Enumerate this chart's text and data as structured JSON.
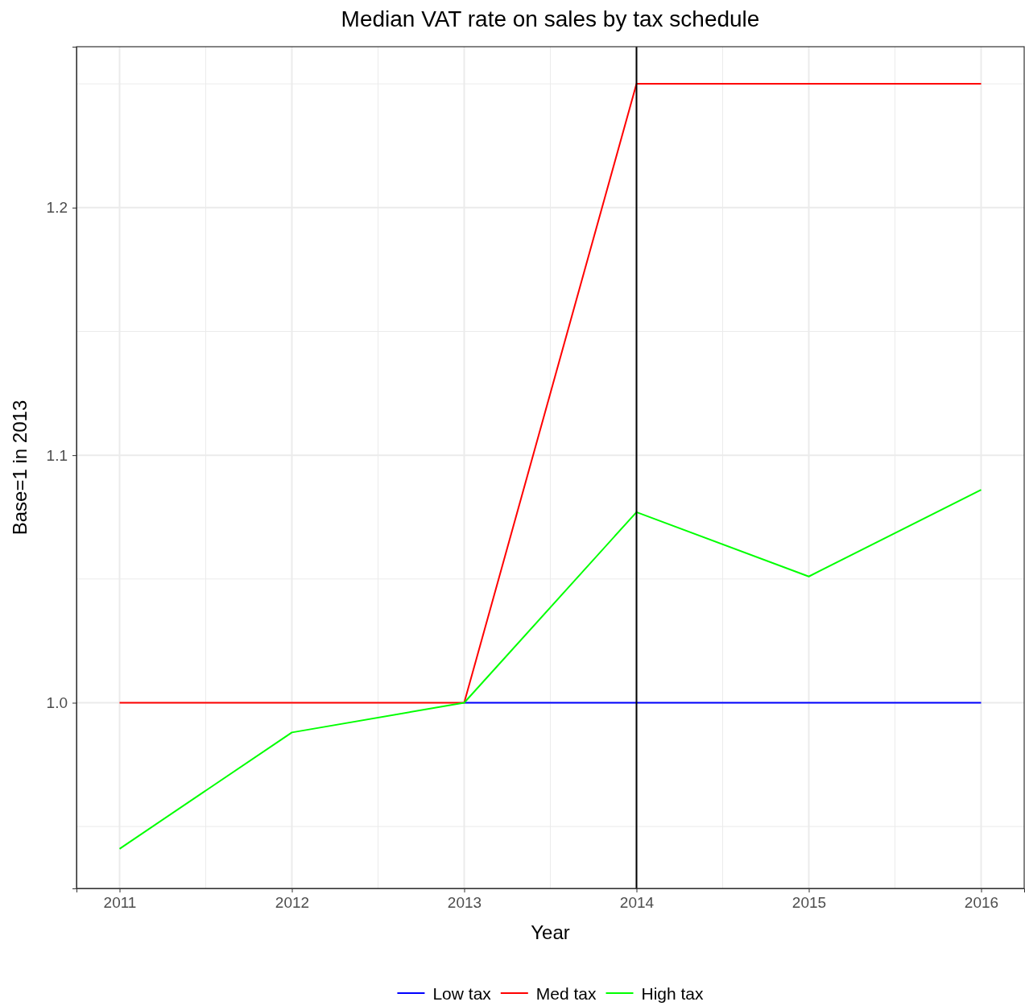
{
  "chart_data": {
    "type": "line",
    "title": "Median VAT rate on sales by tax schedule",
    "xlabel": "Year",
    "ylabel": "Base=1 in 2013",
    "x": [
      2011,
      2012,
      2013,
      2014,
      2015,
      2016
    ],
    "series": [
      {
        "name": "Low tax",
        "color": "#0000ff",
        "values": [
          null,
          null,
          1.0,
          1.0,
          1.0,
          1.0
        ]
      },
      {
        "name": "Med tax",
        "color": "#ff0000",
        "values": [
          1.0,
          1.0,
          1.0,
          1.25,
          1.25,
          1.25
        ]
      },
      {
        "name": "High tax",
        "color": "#00ff00",
        "values": [
          0.941,
          0.988,
          1.0,
          1.077,
          1.051,
          1.086
        ]
      }
    ],
    "xlim": [
      2010.75,
      2016.25
    ],
    "xticks": [
      2011,
      2012,
      2013,
      2014,
      2015,
      2016
    ],
    "ylim": [
      0.925,
      1.265
    ],
    "yticks": [
      {
        "value": 1.0,
        "label": "1.0"
      },
      {
        "value": 1.1,
        "label": "1.1"
      },
      {
        "value": 1.2,
        "label": "1.2"
      }
    ],
    "ref_lines": [
      {
        "axis": "x",
        "value": 2014,
        "color": "#000000"
      }
    ],
    "grid": true,
    "legend": "bottom",
    "marker": "none",
    "line_style": "solid"
  }
}
